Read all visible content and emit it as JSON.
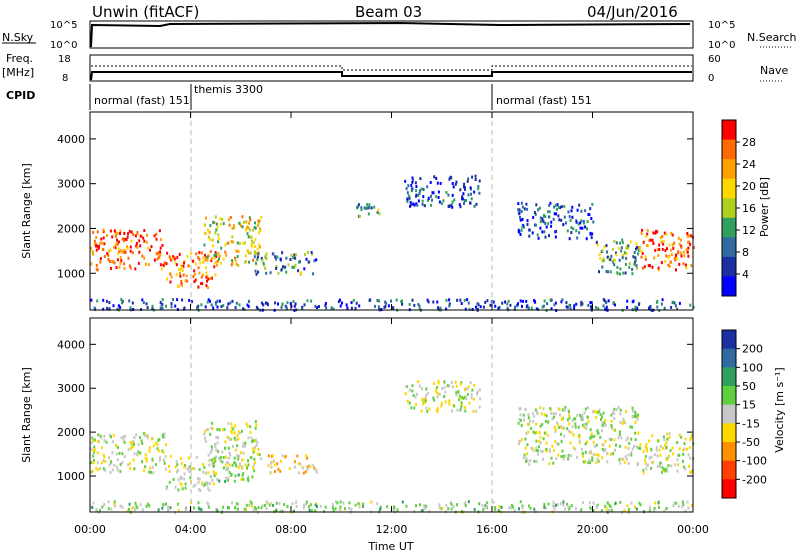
{
  "header": {
    "station": "Unwin (fitACF)",
    "beam": "Beam 03",
    "date": "04/Jun/2016"
  },
  "top_panels": {
    "nsky_label": "N.Sky",
    "nsky_ticks": [
      "10^5",
      "10^0"
    ],
    "nsearch_label": "N.Search",
    "nsearch_ticks": [
      "10^5",
      "10^0"
    ],
    "freq_label": "Freq.",
    "freq_unit": "[MHz]",
    "freq_ticks": [
      "18",
      "8"
    ],
    "nave_label": "Nave",
    "nave_ticks": [
      "60",
      "0"
    ],
    "cpid_label": "CPID",
    "modes": [
      {
        "label": "normal (fast) 151",
        "start_hour": 0
      },
      {
        "label": "themis 3300",
        "start_hour": 4
      },
      {
        "label": "normal (fast) 151",
        "start_hour": 16
      }
    ]
  },
  "power_panel": {
    "ylabel": "Slant Range [km]",
    "cbar_label": "Power [dB]",
    "cbar_ticks": [
      "28",
      "24",
      "20",
      "16",
      "12",
      "8",
      "4"
    ],
    "cbar_colors": [
      "#ff0000",
      "#ff6a00",
      "#ffa000",
      "#ffd800",
      "#b0d020",
      "#30a060",
      "#2f6aa0",
      "#1a2fa0",
      "#0000ff"
    ]
  },
  "velocity_panel": {
    "ylabel": "Slant Range [km]",
    "cbar_label": "Velocity [m s⁻¹]",
    "cbar_ticks": [
      "200",
      "100",
      "50",
      "15",
      "-15",
      "-50",
      "-100",
      "-200"
    ],
    "cbar_colors": [
      "#1a2fa0",
      "#2f6aa0",
      "#30a060",
      "#60d040",
      "#c8c8c8",
      "#ffd800",
      "#ff9000",
      "#ff4000",
      "#ff0000"
    ]
  },
  "xaxis": {
    "label": "Time UT",
    "ticks": [
      "00:00",
      "04:00",
      "08:00",
      "12:00",
      "16:00",
      "20:00",
      "00:00"
    ]
  },
  "chart_data": [
    {
      "type": "heatmap",
      "title": "Power [dB]",
      "xlabel": "Time UT",
      "ylabel": "Slant Range [km]",
      "xlim": [
        0,
        24
      ],
      "ylim": [
        180,
        4600
      ],
      "yticks": [
        1000,
        2000,
        3000,
        4000
      ],
      "colorbar_range": [
        0,
        30
      ],
      "blobs": [
        {
          "t0": 0.0,
          "t1": 3.0,
          "r0": 1100,
          "r1": 2000,
          "value": 26
        },
        {
          "t0": 3.0,
          "t1": 5.0,
          "r0": 700,
          "r1": 1500,
          "value": 24
        },
        {
          "t0": 4.5,
          "t1": 6.8,
          "r0": 1200,
          "r1": 2300,
          "value": 18
        },
        {
          "t0": 6.5,
          "t1": 9.0,
          "r0": 1000,
          "r1": 1500,
          "value": 10
        },
        {
          "t0": 10.5,
          "t1": 11.5,
          "r0": 2300,
          "r1": 2600,
          "value": 10
        },
        {
          "t0": 12.5,
          "t1": 15.5,
          "r0": 2500,
          "r1": 3200,
          "value": 6
        },
        {
          "t0": 17.0,
          "t1": 20.0,
          "r0": 1800,
          "r1": 2600,
          "value": 6
        },
        {
          "t0": 20.0,
          "t1": 21.8,
          "r0": 1000,
          "r1": 1800,
          "value": 12
        },
        {
          "t0": 21.8,
          "t1": 24.0,
          "r0": 1100,
          "r1": 2000,
          "value": 26
        },
        {
          "t0": 0.0,
          "t1": 24.0,
          "r0": 200,
          "r1": 450,
          "value": 6
        }
      ]
    },
    {
      "type": "heatmap",
      "title": "Velocity [m s⁻¹]",
      "xlabel": "Time UT",
      "ylabel": "Slant Range [km]",
      "xlim": [
        0,
        24
      ],
      "ylim": [
        180,
        4600
      ],
      "yticks": [
        1000,
        2000,
        3000,
        4000
      ],
      "colorbar_range": [
        -200,
        200
      ],
      "blobs": [
        {
          "t0": 0.0,
          "t1": 3.0,
          "r0": 1100,
          "r1": 2000,
          "value": 0
        },
        {
          "t0": 3.0,
          "t1": 5.0,
          "r0": 700,
          "r1": 1500,
          "value": 0
        },
        {
          "t0": 4.5,
          "t1": 6.8,
          "r0": 1200,
          "r1": 2300,
          "value": 0
        },
        {
          "t0": 5.0,
          "t1": 6.5,
          "r0": 900,
          "r1": 1300,
          "value": 25
        },
        {
          "t0": 7.0,
          "t1": 9.0,
          "r0": 1100,
          "r1": 1500,
          "value": -40
        },
        {
          "t0": 12.5,
          "t1": 15.5,
          "r0": 2500,
          "r1": 3200,
          "value": 0
        },
        {
          "t0": 17.0,
          "t1": 21.8,
          "r0": 1300,
          "r1": 2600,
          "value": 0
        },
        {
          "t0": 21.8,
          "t1": 24.0,
          "r0": 1100,
          "r1": 2000,
          "value": 0
        },
        {
          "t0": 0.0,
          "t1": 24.0,
          "r0": 200,
          "r1": 450,
          "value": 20
        }
      ]
    }
  ]
}
